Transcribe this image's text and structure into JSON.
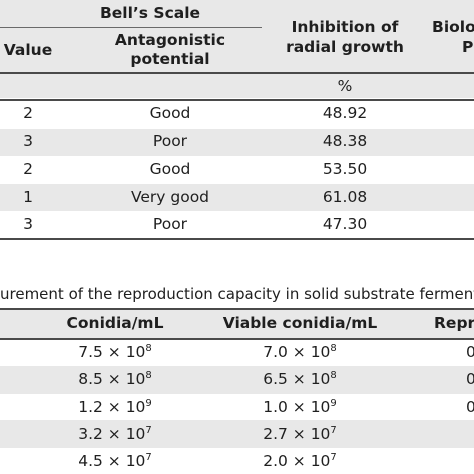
{
  "table1": {
    "group_header": "Bell’s Scale",
    "headers": {
      "value": "Value",
      "antagonistic": [
        "Antagonistic",
        "potential"
      ],
      "inhibition": [
        "Inhibition of",
        "radial growth"
      ],
      "bio_partial": [
        "Biolo",
        "P"
      ]
    },
    "unit_inhibition": "%",
    "rows": [
      {
        "value": "2",
        "potential": "Good",
        "inhibition": "48.92"
      },
      {
        "value": "3",
        "potential": "Poor",
        "inhibition": "48.38"
      },
      {
        "value": "2",
        "potential": "Good",
        "inhibition": "53.50"
      },
      {
        "value": "1",
        "potential": "Very good",
        "inhibition": "61.08"
      },
      {
        "value": "3",
        "potential": "Poor",
        "inhibition": "47.30"
      }
    ]
  },
  "table2": {
    "caption": "urement of the reproduction capacity in solid substrate fermentatio",
    "headers": {
      "conidia": "Conidia/mL",
      "viable": "Viable conidia/mL",
      "repro_partial": "Repr"
    },
    "rows": [
      {
        "conidia_mant": "7.5 × 10",
        "conidia_exp": "8",
        "viable_mant": "7.0 × 10",
        "viable_exp": "8",
        "repro_partial": "0"
      },
      {
        "conidia_mant": "8.5 × 10",
        "conidia_exp": "8",
        "viable_mant": "6.5 × 10",
        "viable_exp": "8",
        "repro_partial": "0"
      },
      {
        "conidia_mant": "1.2 × 10",
        "conidia_exp": "9",
        "viable_mant": "1.0 × 10",
        "viable_exp": "9",
        "repro_partial": "0"
      },
      {
        "conidia_mant": "3.2 × 10",
        "conidia_exp": "7",
        "viable_mant": "2.7 × 10",
        "viable_exp": "7",
        "repro_partial": ""
      },
      {
        "conidia_mant": "4.5 × 10",
        "conidia_exp": "7",
        "viable_mant": "2.0 × 10",
        "viable_exp": "7",
        "repro_partial": ""
      }
    ]
  }
}
